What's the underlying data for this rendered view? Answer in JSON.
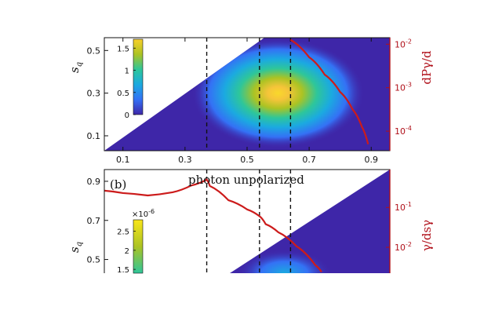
{
  "chart_data": [
    {
      "type": "heatmap",
      "panel_label": "",
      "ylabel_main": "s",
      "ylabel_sub": "q",
      "right_ylabel": "dPγ/d",
      "x_ticks": [
        "0.1",
        "0.3",
        "0.5",
        "0.7",
        "0.9"
      ],
      "y_ticks": [
        "0.1",
        "0.3",
        "0.5"
      ],
      "right_ticks_exp": [
        "-2",
        "-3",
        "-4"
      ],
      "right_ticks_base": "10",
      "colorbar_ticks": [
        "0",
        "0.5",
        "1",
        "1.5"
      ],
      "colorbar_multiplier": "",
      "xlim": [
        0.04,
        0.96
      ],
      "ylim": [
        0.03,
        0.56
      ],
      "hot_spot": {
        "x": 0.6,
        "y": 0.3,
        "peak": 1.7
      },
      "dashed_lines_x": [
        0.37,
        0.54,
        0.64
      ],
      "red_curve": {
        "x": [
          0.64,
          0.7,
          0.75,
          0.8,
          0.84,
          0.87,
          0.89
        ],
        "log_y": [
          -1.9,
          -2.3,
          -2.7,
          -3.1,
          -3.5,
          -3.9,
          -4.3
        ]
      },
      "right_log_range": [
        -4.45,
        -1.85
      ]
    },
    {
      "type": "heatmap",
      "panel_label": "(b)",
      "annotation": "photon unpolarized",
      "ylabel_main": "s",
      "ylabel_sub": "q",
      "right_ylabel": "γ/dsγ",
      "y_ticks": [
        "0.9",
        "0.7",
        "0.5"
      ],
      "right_ticks_exp": [
        "-1",
        "-2"
      ],
      "right_ticks_base": "10",
      "colorbar_ticks": [
        "2.5",
        "2",
        "1.5"
      ],
      "colorbar_multiplier": "×10",
      "colorbar_multiplier_exp": "-6",
      "xlim": [
        0.04,
        0.96
      ],
      "ylim": [
        0.43,
        0.96
      ],
      "dashed_lines_x": [
        0.37,
        0.54,
        0.64
      ],
      "red_curve": {
        "x": [
          0.04,
          0.1,
          0.18,
          0.26,
          0.32,
          0.36,
          0.37,
          0.38,
          0.44,
          0.5,
          0.54,
          0.56,
          0.6,
          0.66,
          0.72,
          0.74
        ],
        "log_y": [
          -0.58,
          -0.64,
          -0.7,
          -0.62,
          -0.45,
          -0.34,
          -0.3,
          -0.46,
          -0.82,
          -1.05,
          -1.22,
          -1.42,
          -1.62,
          -1.98,
          -2.45,
          -2.62
        ]
      },
      "right_log_range": [
        -2.65,
        -0.05
      ]
    }
  ]
}
